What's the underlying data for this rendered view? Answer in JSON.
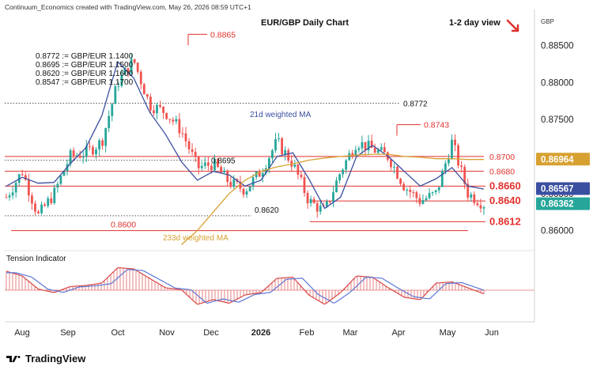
{
  "credit": "Continuum_Economics created with TradingView.com, May 26, 2026 08:59 UTC+1",
  "chart_title": "EUR/GBP Daily Chart",
  "view_label": "1-2 day view",
  "currency_label": "GBP",
  "brand": "TradingView",
  "legend_lines": [
    "0.8772 := GBP/EUR 1.1400",
    "0.8695 := GBP/EUR 1.1500",
    "0.8620 := GBP/EUR 1.1600",
    "0.8547 := GBP/EUR 1.1700"
  ],
  "colors": {
    "up": "#26a69a",
    "down": "#ef5350",
    "ma21": "#3a4fa0",
    "ma233": "#d7a131",
    "resistance": "#e0312d",
    "dotted": "#555555"
  },
  "chart_data": [
    {
      "type": "candlestick",
      "title": "EUR/GBP Daily Chart",
      "x_tick_labels": [
        "Aug",
        "Sep",
        "Oct",
        "Nov",
        "Dec",
        "2026",
        "Feb",
        "Mar",
        "Apr",
        "May",
        "Jun"
      ],
      "y_tick_labels": [
        "0.88500",
        "0.88000",
        "0.87500",
        "0.87000",
        "0.86500",
        "0.86000"
      ],
      "ylim": [
        0.8575,
        0.889
      ],
      "price_tags": [
        {
          "label": "0.86964",
          "value": 0.86964,
          "color": "#d7a131"
        },
        {
          "label": "0.86567",
          "value": 0.86567,
          "color": "#3a4fa0"
        },
        {
          "label": "0.86362",
          "value": 0.86362,
          "color": "#26a69a"
        }
      ],
      "levels": [
        {
          "label": "0.8865",
          "value": 0.8865,
          "style": "red",
          "big": false
        },
        {
          "label": "0.8772",
          "value": 0.8772,
          "style": "dotted",
          "big": false
        },
        {
          "label": "0.8743",
          "value": 0.8743,
          "style": "red",
          "big": false
        },
        {
          "label": "0.8700",
          "value": 0.87,
          "style": "red",
          "big": false
        },
        {
          "label": "0.8695",
          "value": 0.8695,
          "style": "dotted",
          "big": false
        },
        {
          "label": "0.8680",
          "value": 0.868,
          "style": "red",
          "big": false
        },
        {
          "label": "0.8660",
          "value": 0.866,
          "style": "red",
          "big": true
        },
        {
          "label": "0.8640",
          "value": 0.864,
          "style": "red",
          "big": true
        },
        {
          "label": "0.8620",
          "value": 0.862,
          "style": "dotted",
          "big": false
        },
        {
          "label": "0.8612",
          "value": 0.8612,
          "style": "red",
          "big": true
        },
        {
          "label": "0.8600",
          "value": 0.86,
          "style": "red",
          "big": false
        }
      ],
      "series": [
        {
          "name": "21d weighted MA",
          "values": [
            0.866,
            0.8672,
            0.8664,
            0.8665,
            0.869,
            0.8712,
            0.8755,
            0.8828,
            0.8806,
            0.876,
            0.873,
            0.8693,
            0.8668,
            0.868,
            0.8675,
            0.866,
            0.8668,
            0.87,
            0.8705,
            0.867,
            0.863,
            0.8645,
            0.87,
            0.8715,
            0.87,
            0.868,
            0.866,
            0.867,
            0.8685,
            0.866,
            0.8656
          ]
        },
        {
          "name": "233d weighted MA",
          "values": [
            null,
            null,
            null,
            null,
            null,
            null,
            null,
            null,
            null,
            null,
            null,
            0.8581,
            0.86,
            0.8625,
            0.865,
            0.8668,
            0.868,
            0.8686,
            0.869,
            0.8695,
            0.8698,
            0.87,
            0.8702,
            0.8703,
            0.8703,
            0.87,
            0.8699,
            0.8697,
            0.8697,
            0.8696,
            0.8696
          ]
        }
      ],
      "close_path": [
        0.8645,
        0.868,
        0.862,
        0.865,
        0.87,
        0.8705,
        0.872,
        0.88,
        0.883,
        0.877,
        0.876,
        0.8735,
        0.8685,
        0.869,
        0.8665,
        0.8655,
        0.868,
        0.872,
        0.869,
        0.864,
        0.8625,
        0.868,
        0.872,
        0.871,
        0.87,
        0.866,
        0.864,
        0.865,
        0.872,
        0.865,
        0.8636
      ]
    },
    {
      "type": "histogram",
      "title": "Tension Indicator",
      "series": [
        {
          "name": "Tension Indicator",
          "values": [
            0.8,
            0.6,
            0.05,
            -0.1,
            0.15,
            0.2,
            0.3,
            0.95,
            0.9,
            0.5,
            0.1,
            0.02,
            -0.6,
            -0.4,
            -0.55,
            -0.2,
            -0.1,
            0.5,
            0.55,
            -0.2,
            -0.6,
            -0.1,
            0.6,
            0.55,
            0.1,
            -0.3,
            -0.4,
            0.3,
            0.35,
            0.1,
            -0.15
          ]
        }
      ]
    }
  ]
}
